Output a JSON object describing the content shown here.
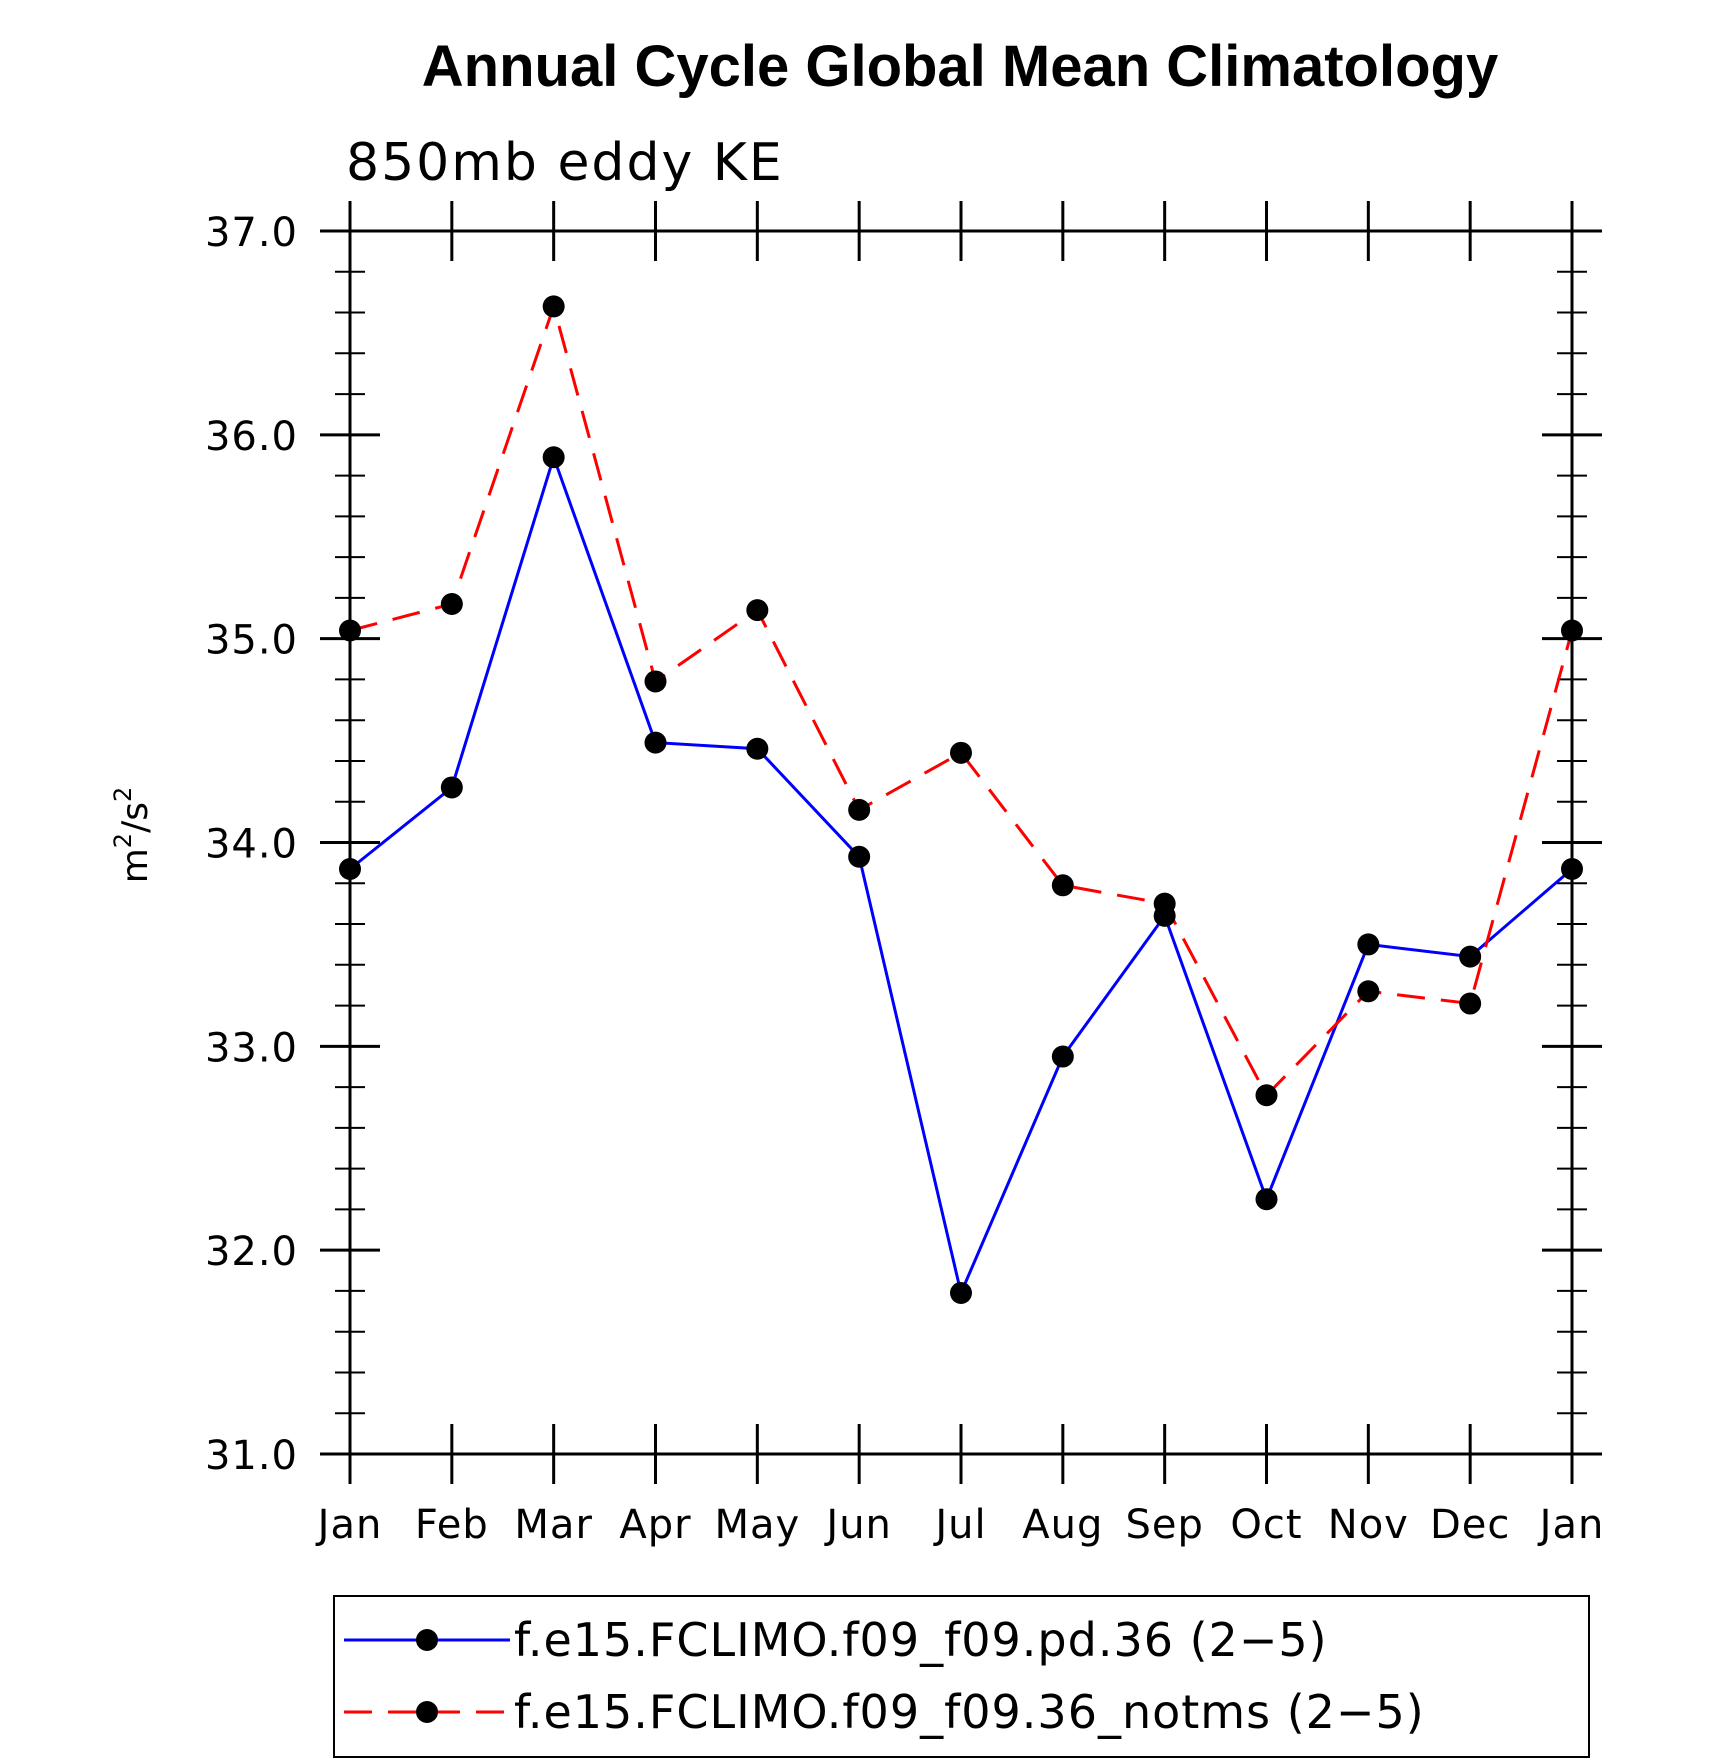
{
  "chart_data": {
    "type": "line",
    "title": "Annual Cycle Global Mean Climatology",
    "subtitle": "850mb eddy KE",
    "ylabel_base": "m",
    "ylabel_sup1": "2",
    "ylabel_mid": "/s",
    "ylabel_sup2": "2",
    "ylim": [
      31.0,
      37.0
    ],
    "yticks": [
      "31.0",
      "32.0",
      "33.0",
      "34.0",
      "35.0",
      "36.0",
      "37.0"
    ],
    "categories": [
      "Jan",
      "Feb",
      "Mar",
      "Apr",
      "May",
      "Jun",
      "Jul",
      "Aug",
      "Sep",
      "Oct",
      "Nov",
      "Dec",
      "Jan"
    ],
    "grid": false,
    "legend_position": "bottom",
    "series": [
      {
        "name": "f.e15.FCLIMO.f09_f09.pd.36 (2−5)",
        "color": "#0000ff",
        "dash": "solid",
        "values": [
          33.87,
          34.27,
          35.89,
          34.49,
          34.46,
          33.93,
          31.79,
          32.95,
          33.64,
          32.25,
          33.5,
          33.44,
          33.87
        ]
      },
      {
        "name": "f.e15.FCLIMO.f09_f09.36_notms (2−5)",
        "color": "#ff0000",
        "dash": "dashed",
        "values": [
          35.04,
          35.17,
          36.63,
          34.79,
          35.14,
          34.16,
          34.44,
          33.79,
          33.7,
          32.76,
          33.27,
          33.21,
          35.04
        ]
      }
    ]
  }
}
